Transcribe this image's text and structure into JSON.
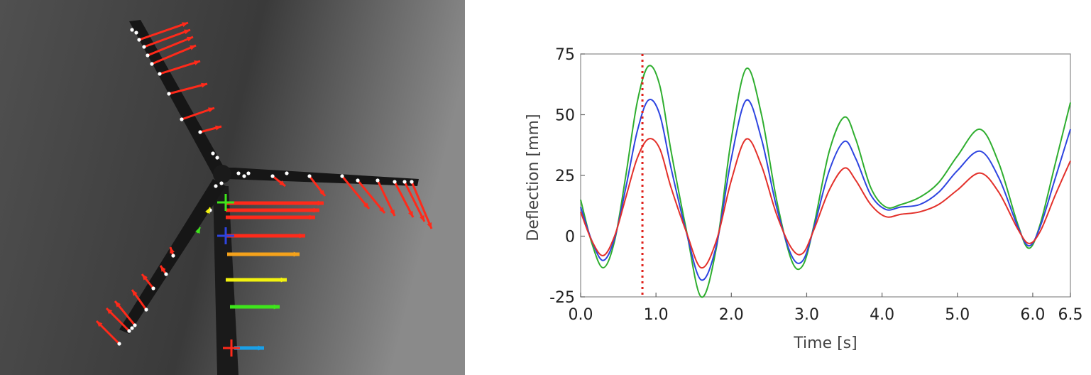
{
  "photo": {
    "description_icon": "wind-turbine-photo",
    "arrow_colors": [
      "#ff2a1a",
      "#f5a21b",
      "#f2f20e",
      "#3ee51b",
      "#1aa0e8"
    ]
  },
  "chart_data": {
    "type": "line",
    "xlabel": "Time [s]",
    "ylabel": "Deflection [mm]",
    "xlim": [
      0,
      6.5
    ],
    "ylim": [
      -25,
      75
    ],
    "x_ticks": [
      0.0,
      1.0,
      2.0,
      3.0,
      4.0,
      5.0,
      6.0,
      6.5
    ],
    "x_tick_labels": [
      "0.0",
      "1.0",
      "2.0",
      "3.0",
      "4.0",
      "5.0",
      "6.0",
      "6.5"
    ],
    "y_ticks": [
      75,
      50,
      25,
      0,
      -25
    ],
    "y_tick_labels": [
      "75",
      "50",
      "25",
      "0",
      "-25"
    ],
    "grid": false,
    "marker_line": {
      "x": 0.82,
      "color": "#e0201a",
      "style": "dotted"
    },
    "series": [
      {
        "color": "#2fae2f",
        "x": [
          0.0,
          0.15,
          0.3,
          0.45,
          0.6,
          0.75,
          0.9,
          1.05,
          1.2,
          1.4,
          1.6,
          1.8,
          2.0,
          2.2,
          2.4,
          2.6,
          2.8,
          2.95,
          3.1,
          3.3,
          3.5,
          3.65,
          3.85,
          4.05,
          4.25,
          4.5,
          4.75,
          5.0,
          5.3,
          5.55,
          5.8,
          5.95,
          6.1,
          6.3,
          6.5
        ],
        "values": [
          15,
          -3,
          -13,
          -2,
          25,
          55,
          70,
          62,
          35,
          3,
          -25,
          -5,
          40,
          69,
          50,
          15,
          -10,
          -12,
          5,
          35,
          49,
          40,
          20,
          12,
          13,
          16,
          22,
          33,
          44,
          30,
          5,
          -5,
          5,
          30,
          55
        ]
      },
      {
        "color": "#2d44e0",
        "x": [
          0.0,
          0.15,
          0.3,
          0.45,
          0.6,
          0.75,
          0.9,
          1.05,
          1.2,
          1.4,
          1.6,
          1.8,
          2.0,
          2.2,
          2.4,
          2.6,
          2.8,
          2.95,
          3.1,
          3.3,
          3.5,
          3.65,
          3.85,
          4.05,
          4.25,
          4.5,
          4.75,
          5.0,
          5.3,
          5.55,
          5.8,
          5.95,
          6.1,
          6.3,
          6.5
        ],
        "values": [
          12,
          -2,
          -10,
          -1,
          20,
          43,
          56,
          50,
          28,
          2,
          -18,
          -4,
          32,
          56,
          40,
          12,
          -8,
          -10,
          4,
          27,
          39,
          32,
          17,
          11,
          12,
          13,
          18,
          27,
          35,
          24,
          4,
          -4,
          4,
          24,
          44
        ]
      },
      {
        "color": "#e3302a",
        "x": [
          0.0,
          0.15,
          0.3,
          0.45,
          0.6,
          0.75,
          0.9,
          1.05,
          1.2,
          1.4,
          1.6,
          1.8,
          2.0,
          2.2,
          2.4,
          2.6,
          2.8,
          2.95,
          3.1,
          3.3,
          3.5,
          3.65,
          3.85,
          4.05,
          4.25,
          4.5,
          4.75,
          5.0,
          5.3,
          5.55,
          5.8,
          5.95,
          6.1,
          6.3,
          6.5
        ],
        "values": [
          10,
          -2,
          -8,
          0,
          16,
          32,
          40,
          36,
          20,
          2,
          -13,
          -2,
          23,
          40,
          29,
          9,
          -5,
          -7,
          3,
          19,
          28,
          23,
          13,
          8,
          9,
          10,
          13,
          19,
          26,
          18,
          3,
          -3,
          2,
          17,
          31
        ]
      }
    ]
  }
}
